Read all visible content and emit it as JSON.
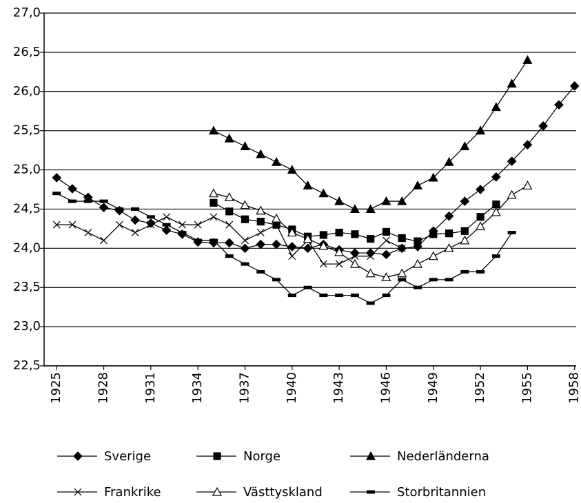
{
  "chart_data": {
    "type": "line",
    "x": [
      1925,
      1926,
      1927,
      1928,
      1929,
      1930,
      1931,
      1932,
      1933,
      1934,
      1935,
      1936,
      1937,
      1938,
      1939,
      1940,
      1941,
      1942,
      1943,
      1944,
      1945,
      1946,
      1947,
      1948,
      1949,
      1950,
      1951,
      1952,
      1953,
      1954,
      1955,
      1956,
      1957,
      1958
    ],
    "xlim": [
      1924.2,
      1958.1
    ],
    "xticks": [
      1925,
      1928,
      1931,
      1934,
      1937,
      1940,
      1943,
      1946,
      1949,
      1952,
      1955,
      1958
    ],
    "ylim": [
      22.5,
      27.0
    ],
    "yticks": [
      {
        "value": 22.5,
        "label": "22,5"
      },
      {
        "value": 23.0,
        "label": "23,0"
      },
      {
        "value": 23.5,
        "label": "23,5"
      },
      {
        "value": 24.0,
        "label": "24,0"
      },
      {
        "value": 24.5,
        "label": "24,5"
      },
      {
        "value": 25.0,
        "label": "25,0"
      },
      {
        "value": 25.5,
        "label": "25,5"
      },
      {
        "value": 26.0,
        "label": "26,0"
      },
      {
        "value": 26.5,
        "label": "26,5"
      },
      {
        "value": 27.0,
        "label": "27,0"
      }
    ],
    "grid": true,
    "legend": "bottom",
    "series": [
      {
        "name": "Sverige",
        "color": "#000000",
        "marker": "diamond",
        "values": [
          24.9,
          24.76,
          24.65,
          24.52,
          24.48,
          24.36,
          24.32,
          24.23,
          24.18,
          24.08,
          24.07,
          24.07,
          24.0,
          24.05,
          24.05,
          24.02,
          24.0,
          24.05,
          23.98,
          23.94,
          23.94,
          23.92,
          24.0,
          24.02,
          24.22,
          24.41,
          24.6,
          24.75,
          24.91,
          25.11,
          25.32,
          25.56,
          25.83,
          26.07
        ]
      },
      {
        "name": "Norge",
        "color": "#000000",
        "marker": "square",
        "values": [
          null,
          null,
          null,
          null,
          null,
          null,
          null,
          null,
          null,
          null,
          24.58,
          24.47,
          24.37,
          24.34,
          24.3,
          24.24,
          24.15,
          24.17,
          24.2,
          24.18,
          24.12,
          24.21,
          24.13,
          24.09,
          24.18,
          24.19,
          24.22,
          24.4,
          24.56,
          null,
          null,
          null,
          null,
          null
        ]
      },
      {
        "name": "Nederländerna",
        "color": "#000000",
        "marker": "triangle",
        "values": [
          null,
          null,
          null,
          null,
          null,
          null,
          null,
          null,
          null,
          null,
          25.5,
          25.4,
          25.3,
          25.2,
          25.1,
          25.0,
          24.8,
          24.7,
          24.6,
          24.5,
          24.5,
          24.6,
          24.6,
          24.8,
          24.9,
          25.1,
          25.3,
          25.5,
          25.8,
          26.1,
          26.4,
          null,
          null,
          null
        ]
      },
      {
        "name": "Frankrike",
        "color": "#000000",
        "marker": "x",
        "values": [
          24.3,
          24.3,
          24.2,
          24.1,
          24.3,
          24.2,
          24.3,
          24.4,
          24.3,
          24.3,
          24.4,
          24.3,
          24.1,
          24.2,
          24.3,
          23.9,
          24.1,
          23.8,
          23.8,
          23.9,
          23.9,
          24.1,
          24.0,
          null,
          null,
          null,
          null,
          null,
          null,
          null,
          null,
          null,
          null,
          null
        ]
      },
      {
        "name": "Västtyskland",
        "color": "#000000",
        "marker": "open-triangle",
        "values": [
          null,
          null,
          null,
          null,
          null,
          null,
          null,
          null,
          null,
          null,
          24.7,
          24.65,
          24.55,
          24.48,
          24.38,
          24.2,
          24.12,
          24.03,
          23.95,
          23.8,
          23.68,
          23.63,
          23.68,
          23.8,
          23.9,
          24.0,
          24.1,
          24.28,
          24.46,
          24.68,
          24.8,
          null,
          null,
          null
        ]
      },
      {
        "name": "Storbritannien",
        "color": "#000000",
        "marker": "dash",
        "values": [
          24.7,
          24.6,
          24.6,
          24.6,
          24.5,
          24.5,
          24.4,
          24.3,
          24.2,
          24.1,
          24.1,
          23.9,
          23.8,
          23.7,
          23.6,
          23.4,
          23.5,
          23.4,
          23.4,
          23.4,
          23.3,
          23.4,
          23.6,
          23.5,
          23.6,
          23.6,
          23.7,
          23.7,
          23.9,
          24.2,
          null,
          null,
          null,
          null
        ]
      }
    ]
  }
}
